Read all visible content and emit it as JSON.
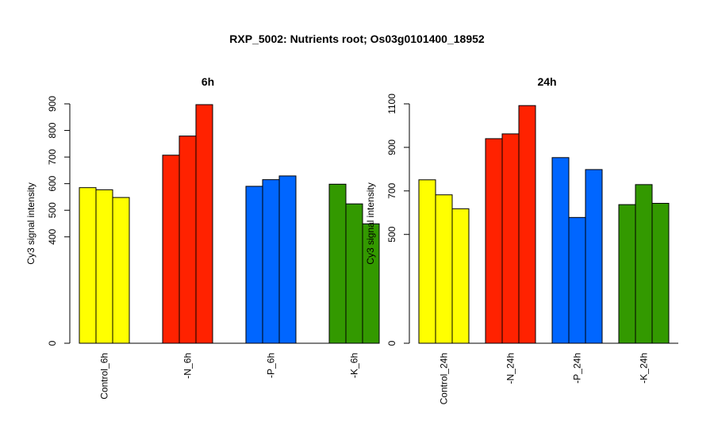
{
  "title": "RXP_5002: Nutrients root; Os03g0101400_18952",
  "chart_data": [
    {
      "type": "bar",
      "title": "6h",
      "ylabel": "Cy3 signal intensity",
      "ylim": [
        0,
        900
      ],
      "yticks": [
        0,
        400,
        500,
        600,
        700,
        800,
        900
      ],
      "groups": [
        {
          "label": "Control_6h",
          "color": "#ffff00",
          "values": [
            585,
            577,
            548
          ]
        },
        {
          "label": "-N_6h",
          "color": "#ff2200",
          "values": [
            707,
            779,
            897
          ]
        },
        {
          "label": "-P_6h",
          "color": "#0066ff",
          "values": [
            590,
            615,
            629
          ]
        },
        {
          "label": "-K_6h",
          "color": "#339900",
          "values": [
            598,
            524,
            449
          ]
        }
      ]
    },
    {
      "type": "bar",
      "title": "24h",
      "ylabel": "Cy3 signal intensity",
      "ylim": [
        0,
        1100
      ],
      "yticks": [
        0,
        500,
        700,
        900,
        1100
      ],
      "groups": [
        {
          "label": "Control_24h",
          "color": "#ffff00",
          "values": [
            751,
            682,
            618
          ]
        },
        {
          "label": "-N_24h",
          "color": "#ff2200",
          "values": [
            940,
            962,
            1092
          ]
        },
        {
          "label": "-P_24h",
          "color": "#0066ff",
          "values": [
            853,
            578,
            798
          ]
        },
        {
          "label": "-K_24h",
          "color": "#339900",
          "values": [
            637,
            729,
            643
          ]
        }
      ]
    }
  ]
}
